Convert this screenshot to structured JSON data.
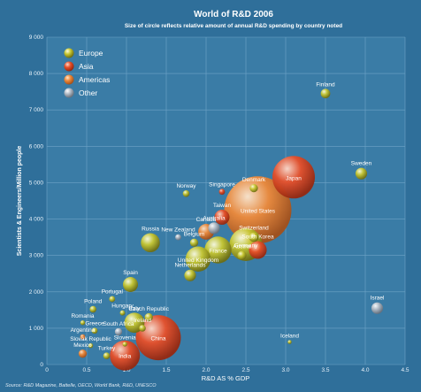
{
  "chart_data": {
    "type": "scatter",
    "title": "World of R&D 2006",
    "subtitle": "Size of circle reflects relative amount of annual R&D spending by country noted",
    "xlabel": "R&D  AS % GDP",
    "ylabel": "Scientists & Engineers/Million people",
    "xlim": [
      0,
      4.5
    ],
    "ylim": [
      0,
      9000
    ],
    "xticks": [
      "0",
      "0.5",
      "1.0",
      "1.5",
      "2.0",
      "2.5",
      "3.0",
      "3.5",
      "4.0",
      "4.5"
    ],
    "yticks": [
      "0",
      "1 000",
      "2 000",
      "3 000",
      "4 000",
      "5 000",
      "6 000",
      "7 000",
      "8 000",
      "9 000"
    ],
    "grid": true,
    "legend_position": "top-left",
    "legend": [
      {
        "name": "Europe",
        "color": "#c8c832"
      },
      {
        "name": "Asia",
        "color": "#e8502a"
      },
      {
        "name": "Americas",
        "color": "#ef8a3a"
      },
      {
        "name": "Other",
        "color": "#b4bcc6"
      }
    ],
    "source": "Source: R&D Magazine, Battelle, OECD, World Bank, R&D, UNESCO",
    "points": [
      {
        "name": "Finland",
        "x": 3.5,
        "y": 7450,
        "size": 2,
        "group": "Europe"
      },
      {
        "name": "Sweden",
        "x": 3.95,
        "y": 5250,
        "size": 3,
        "group": "Europe"
      },
      {
        "name": "Japan",
        "x": 3.1,
        "y": 5150,
        "size": 40,
        "group": "Asia"
      },
      {
        "name": "Denmark",
        "x": 2.6,
        "y": 4850,
        "size": 1.5,
        "group": "Europe"
      },
      {
        "name": "Singapore",
        "x": 2.2,
        "y": 4750,
        "size": 0.8,
        "group": "Asia"
      },
      {
        "name": "Norway",
        "x": 1.75,
        "y": 4700,
        "size": 1,
        "group": "Europe"
      },
      {
        "name": "United States",
        "x": 2.65,
        "y": 4250,
        "size": 100,
        "group": "Americas"
      },
      {
        "name": "Taiwan",
        "x": 2.2,
        "y": 4050,
        "size": 5,
        "group": "Asia"
      },
      {
        "name": "Australia",
        "x": 2.1,
        "y": 3750,
        "size": 3,
        "group": "Other"
      },
      {
        "name": "Canada",
        "x": 2.0,
        "y": 3650,
        "size": 5.5,
        "group": "Americas"
      },
      {
        "name": "New Zealand",
        "x": 1.65,
        "y": 3500,
        "size": 0.8,
        "group": "Other"
      },
      {
        "name": "Russia",
        "x": 1.3,
        "y": 3350,
        "size": 8,
        "group": "Europe"
      },
      {
        "name": "Belgium",
        "x": 1.85,
        "y": 3350,
        "size": 1.5,
        "group": "Europe"
      },
      {
        "name": "France",
        "x": 2.15,
        "y": 3150,
        "size": 16,
        "group": "Europe"
      },
      {
        "name": "Switzerland",
        "x": 2.6,
        "y": 3500,
        "size": 2,
        "group": "Europe"
      },
      {
        "name": "South Korea",
        "x": 2.65,
        "y": 3150,
        "size": 7,
        "group": "Asia"
      },
      {
        "name": "Austria",
        "x": 2.45,
        "y": 3000,
        "size": 1.8,
        "group": "Europe"
      },
      {
        "name": "United Kingdom",
        "x": 1.9,
        "y": 2900,
        "size": 14,
        "group": "Europe"
      },
      {
        "name": "Germany",
        "x": 2.5,
        "y": 3300,
        "size": 24,
        "group": "Europe"
      },
      {
        "name": "Netherlands",
        "x": 1.8,
        "y": 2450,
        "size": 3,
        "group": "Europe"
      },
      {
        "name": "Spain",
        "x": 1.05,
        "y": 2200,
        "size": 5,
        "group": "Europe"
      },
      {
        "name": "Portugal",
        "x": 0.82,
        "y": 1800,
        "size": 0.8,
        "group": "Europe"
      },
      {
        "name": "Poland",
        "x": 0.58,
        "y": 1520,
        "size": 1,
        "group": "Europe"
      },
      {
        "name": "Hungary",
        "x": 0.95,
        "y": 1420,
        "size": 0.6,
        "group": "Europe"
      },
      {
        "name": "Romania",
        "x": 0.45,
        "y": 1150,
        "size": 0.5,
        "group": "Europe"
      },
      {
        "name": "Czech Republic",
        "x": 1.28,
        "y": 1300,
        "size": 1.5,
        "group": "Europe"
      },
      {
        "name": "Italy",
        "x": 1.1,
        "y": 1150,
        "size": 9,
        "group": "Europe"
      },
      {
        "name": "Ireland",
        "x": 1.2,
        "y": 1000,
        "size": 1,
        "group": "Europe"
      },
      {
        "name": "Greece",
        "x": 0.6,
        "y": 930,
        "size": 0.8,
        "group": "Europe"
      },
      {
        "name": "South Africa",
        "x": 0.9,
        "y": 900,
        "size": 1.2,
        "group": "Other"
      },
      {
        "name": "Argentina",
        "x": 0.45,
        "y": 760,
        "size": 0.6,
        "group": "Americas"
      },
      {
        "name": "China",
        "x": 1.4,
        "y": 740,
        "size": 45,
        "group": "Asia"
      },
      {
        "name": "Slovak Republic",
        "x": 0.55,
        "y": 520,
        "size": 0.5,
        "group": "Europe"
      },
      {
        "name": "Slovenia",
        "x": 0.98,
        "y": 560,
        "size": 0.5,
        "group": "Europe"
      },
      {
        "name": "Mexico",
        "x": 0.45,
        "y": 300,
        "size": 1.5,
        "group": "Americas"
      },
      {
        "name": "Turkey",
        "x": 0.75,
        "y": 240,
        "size": 1,
        "group": "Europe"
      },
      {
        "name": "India",
        "x": 0.98,
        "y": 250,
        "size": 20,
        "group": "Asia"
      },
      {
        "name": "Iceland",
        "x": 3.05,
        "y": 620,
        "size": 0.3,
        "group": "Europe"
      },
      {
        "name": "Israel",
        "x": 4.15,
        "y": 1550,
        "size": 3,
        "group": "Other"
      }
    ]
  }
}
